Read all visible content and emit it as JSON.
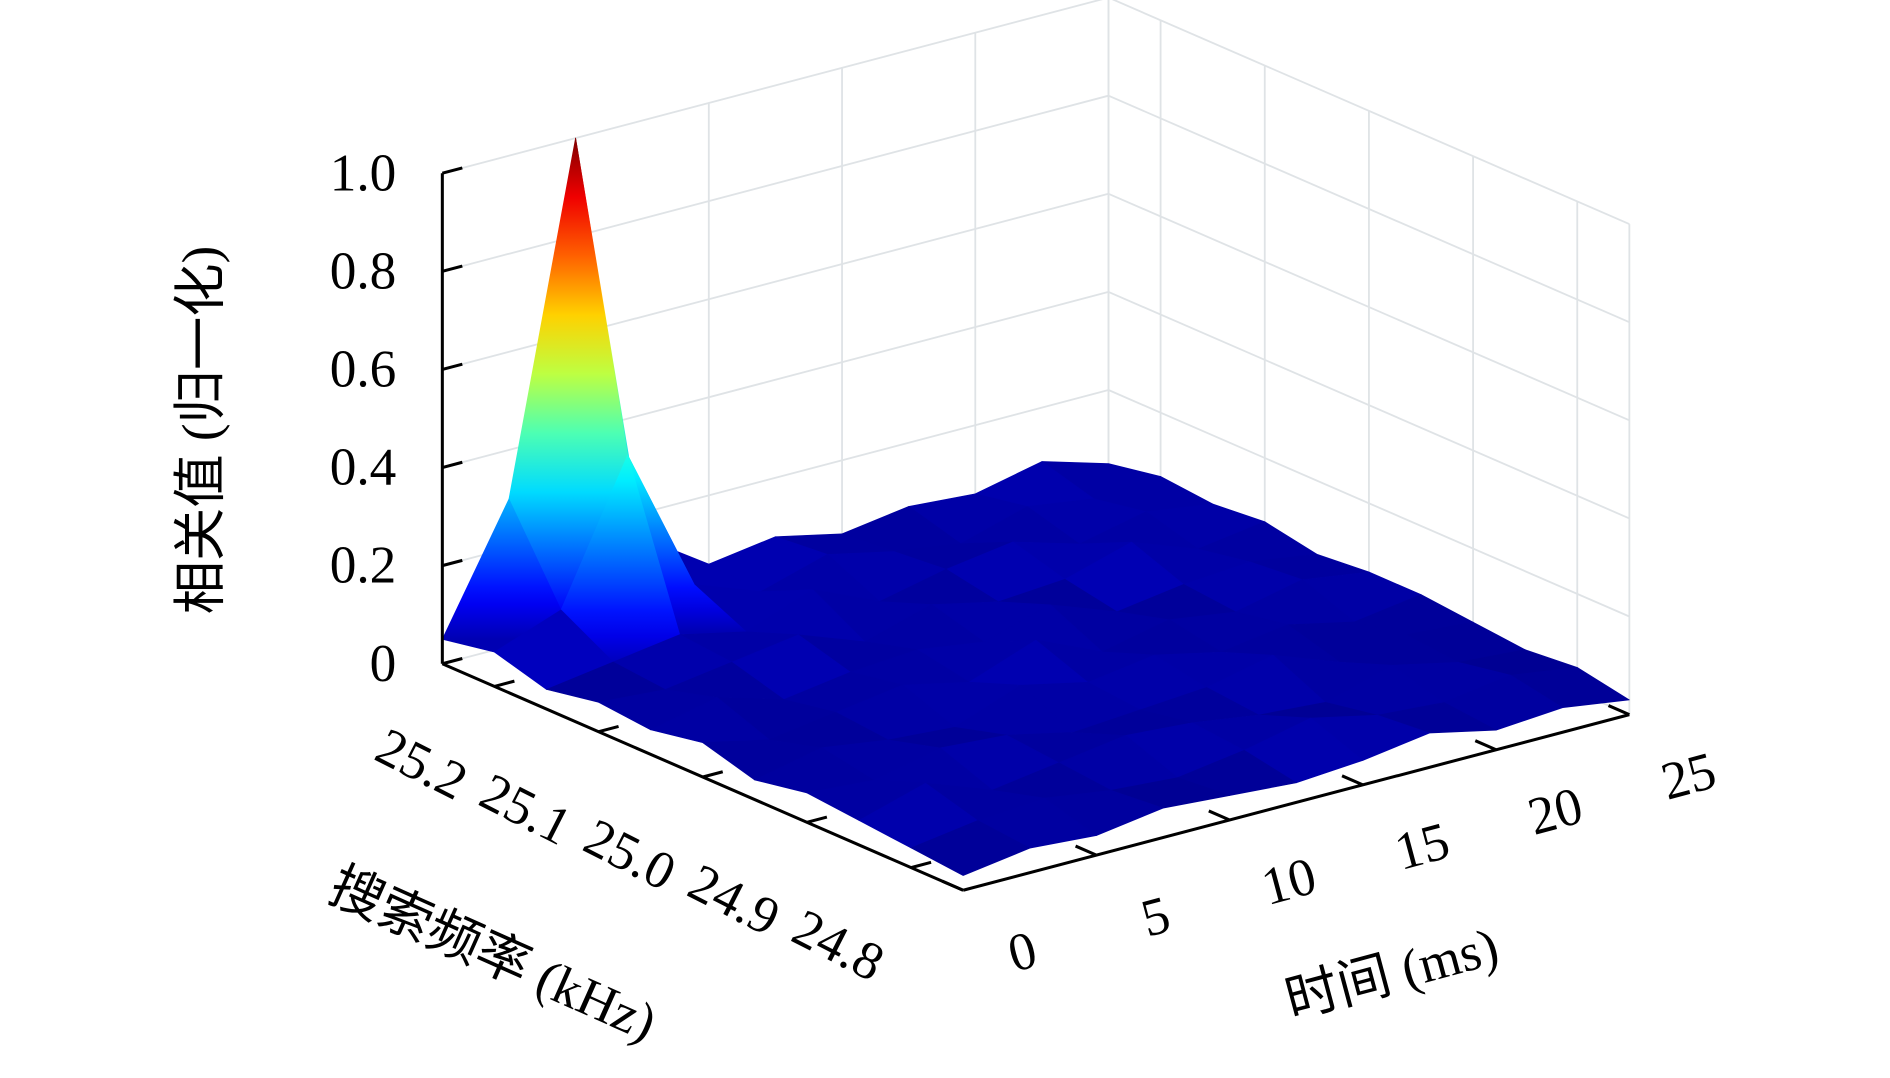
{
  "chart_data": {
    "type": "surface3d",
    "zlabel": "相关值 (归一化)",
    "ylabel": "搜索频率 (kHz)",
    "xlabel": "时间 (ms)",
    "x": [
      0,
      2.5,
      5,
      7.5,
      10,
      12.5,
      15,
      17.5,
      20,
      22.5,
      25
    ],
    "y": [
      25.25,
      25.2,
      25.15,
      25.1,
      25.05,
      25.0,
      24.95,
      24.9,
      24.85,
      24.8,
      24.75
    ],
    "z": [
      [
        0.05,
        0.3,
        1.0,
        0.15,
        0.06,
        0.08,
        0.05,
        0.07,
        0.06,
        0.09,
        0.05
      ],
      [
        0.07,
        0.12,
        0.4,
        0.1,
        0.05,
        0.09,
        0.06,
        0.04,
        0.08,
        0.06,
        0.07
      ],
      [
        0.04,
        0.06,
        0.08,
        0.05,
        0.1,
        0.04,
        0.07,
        0.09,
        0.05,
        0.08,
        0.06
      ],
      [
        0.06,
        0.05,
        0.07,
        0.09,
        0.04,
        0.08,
        0.05,
        0.06,
        0.1,
        0.05,
        0.07
      ],
      [
        0.05,
        0.08,
        0.04,
        0.06,
        0.07,
        0.05,
        0.09,
        0.04,
        0.06,
        0.07,
        0.05
      ],
      [
        0.07,
        0.04,
        0.06,
        0.08,
        0.05,
        0.1,
        0.04,
        0.07,
        0.05,
        0.08,
        0.06
      ],
      [
        0.04,
        0.07,
        0.05,
        0.04,
        0.09,
        0.06,
        0.08,
        0.05,
        0.07,
        0.04,
        0.06
      ],
      [
        0.06,
        0.05,
        0.08,
        0.07,
        0.04,
        0.05,
        0.06,
        0.09,
        0.04,
        0.06,
        0.05
      ],
      [
        0.05,
        0.09,
        0.04,
        0.06,
        0.08,
        0.07,
        0.05,
        0.04,
        0.08,
        0.05,
        0.04
      ],
      [
        0.04,
        0.06,
        0.07,
        0.05,
        0.04,
        0.06,
        0.09,
        0.06,
        0.05,
        0.07,
        0.05
      ],
      [
        0.03,
        0.05,
        0.04,
        0.06,
        0.05,
        0.04,
        0.05,
        0.07,
        0.04,
        0.05,
        0.03
      ]
    ],
    "xlim": [
      0,
      25
    ],
    "xticks": [
      0,
      5,
      10,
      15,
      20,
      25
    ],
    "ylim": [
      25.25,
      24.75
    ],
    "yticks": [
      25.2,
      25.1,
      {
        "value": 25.0,
        "label": "25.0"
      },
      24.9,
      24.8
    ],
    "zlim": [
      0,
      1
    ],
    "zticks": [
      0,
      0.2,
      0.4,
      0.6,
      0.8,
      {
        "value": 1,
        "label": "1.0"
      }
    ],
    "colormap": "jet",
    "grid": true
  }
}
